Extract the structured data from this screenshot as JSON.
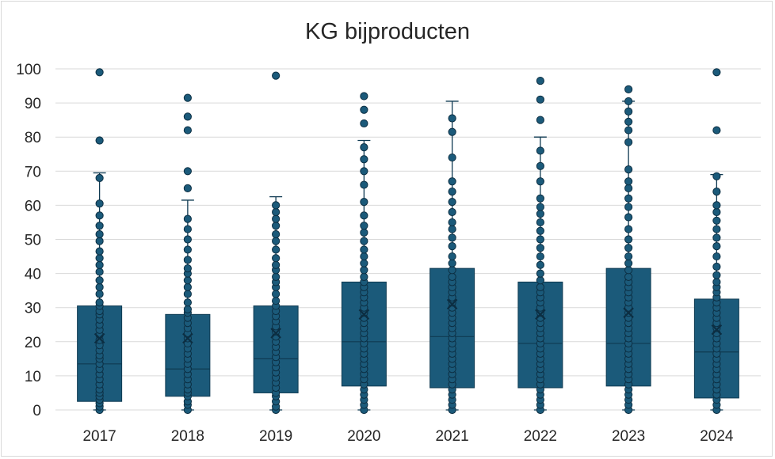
{
  "chart_data": {
    "type": "boxplot",
    "title": "KG bijproducten",
    "xlabel": "",
    "ylabel": "",
    "ylim": [
      0,
      100
    ],
    "yticks": [
      0,
      10,
      20,
      30,
      40,
      50,
      60,
      70,
      80,
      90,
      100
    ],
    "grid": true,
    "legend": "none",
    "colors": {
      "box": "#1b5a7a",
      "box_edge": "#0f3a52",
      "point": "#1b5a7a",
      "point_edge": "#0c2e42",
      "grid": "#d9d9d9"
    },
    "categories": [
      "2017",
      "2018",
      "2019",
      "2020",
      "2021",
      "2022",
      "2023",
      "2024"
    ],
    "boxes": [
      {
        "category": "2017",
        "min": 0,
        "q1": 2.5,
        "median": 13.5,
        "q3": 30.5,
        "max": 69.5,
        "mean": 21,
        "points": [
          0,
          1,
          2,
          3,
          4,
          5,
          6,
          7.5,
          9,
          10.5,
          12,
          13.5,
          15,
          16,
          17.5,
          19,
          20.5,
          22,
          23.5,
          25,
          26.5,
          28,
          29,
          30.5,
          31.5,
          34,
          36,
          38,
          40.5,
          42.5,
          44.5,
          46.5,
          49.5,
          51.5,
          54,
          57,
          60.5,
          68,
          79,
          99
        ]
      },
      {
        "category": "2018",
        "min": 0,
        "q1": 4,
        "median": 12,
        "q3": 28,
        "max": 61.5,
        "mean": 21,
        "points": [
          0,
          1.5,
          2.5,
          4,
          5,
          6,
          7.5,
          9,
          10.5,
          12,
          13.5,
          15,
          16.5,
          18,
          19.5,
          21,
          22.5,
          24,
          25.5,
          27,
          28.5,
          29.5,
          31.5,
          34,
          36,
          38,
          40,
          41.5,
          44,
          47,
          50,
          53,
          56,
          65,
          70,
          82,
          86,
          91.5
        ]
      },
      {
        "category": "2019",
        "min": 0,
        "q1": 5,
        "median": 15,
        "q3": 30.5,
        "max": 62.5,
        "mean": 22.5,
        "points": [
          0,
          1,
          2.5,
          4,
          5,
          6.5,
          8,
          9.5,
          11,
          12.5,
          14,
          15.5,
          17,
          18.5,
          20,
          21.5,
          23,
          24.5,
          26,
          27.5,
          29,
          30.5,
          32,
          34,
          36,
          37.5,
          39,
          41,
          42.5,
          44.5,
          47,
          49.5,
          51.5,
          54,
          56,
          58,
          60,
          98
        ]
      },
      {
        "category": "2020",
        "min": 0,
        "q1": 7,
        "median": 20,
        "q3": 37.5,
        "max": 79,
        "mean": 28,
        "points": [
          0,
          1.5,
          3,
          4.5,
          6,
          7.5,
          9,
          10.5,
          12,
          13.5,
          15,
          16.5,
          18,
          19.5,
          21,
          22.5,
          24,
          25.5,
          27,
          28.5,
          30,
          31.5,
          33,
          34.5,
          36,
          37.5,
          39,
          41,
          43,
          45,
          47,
          49.5,
          52,
          54,
          57,
          61,
          66,
          70,
          73.5,
          77,
          84,
          88,
          92
        ]
      },
      {
        "category": "2021",
        "min": 0,
        "q1": 6.5,
        "median": 21.5,
        "q3": 41.5,
        "max": 90.5,
        "mean": 31,
        "points": [
          0,
          1.5,
          3,
          4.5,
          6,
          7.5,
          9,
          10.5,
          12,
          13.5,
          15,
          16.5,
          18,
          19.5,
          21,
          22.5,
          24,
          25.5,
          27,
          28.5,
          30,
          31.5,
          33,
          34.5,
          36,
          37.5,
          39,
          41,
          43,
          45,
          48,
          50.5,
          53,
          55,
          58,
          61,
          64,
          67,
          74,
          81.5,
          85.5
        ]
      },
      {
        "category": "2022",
        "min": 0,
        "q1": 6.5,
        "median": 19.5,
        "q3": 37.5,
        "max": 80,
        "mean": 28,
        "points": [
          0,
          1.5,
          3,
          4.5,
          6,
          7.5,
          9,
          10.5,
          12,
          13.5,
          15,
          16.5,
          18,
          19.5,
          21,
          22.5,
          24,
          25.5,
          27,
          28.5,
          30,
          31.5,
          33,
          34.5,
          36,
          38,
          40,
          42.5,
          45,
          47.5,
          50,
          52.5,
          55,
          57.5,
          59.5,
          62,
          67,
          71.5,
          76,
          85,
          91,
          96.5
        ]
      },
      {
        "category": "2023",
        "min": 0,
        "q1": 7,
        "median": 19.5,
        "q3": 41.5,
        "max": 90.5,
        "mean": 28.5,
        "points": [
          0,
          1.5,
          3,
          4.5,
          6,
          7.5,
          9,
          10.5,
          12,
          13.5,
          15,
          16.5,
          18,
          19.5,
          21,
          22.5,
          24,
          25.5,
          27,
          28.5,
          30,
          31.5,
          33,
          34.5,
          36,
          37.5,
          39,
          41,
          43,
          45,
          47.5,
          50,
          53,
          56.5,
          59.5,
          62,
          65,
          67,
          70.5,
          78.5,
          82,
          84.5,
          87.5,
          90.5,
          94
        ]
      },
      {
        "category": "2024",
        "min": 0,
        "q1": 3.5,
        "median": 17,
        "q3": 32.5,
        "max": 69,
        "mean": 23.5,
        "points": [
          0,
          1.5,
          3,
          4.5,
          6,
          7.5,
          9,
          10.5,
          12,
          13.5,
          15,
          16.5,
          18,
          19.5,
          21,
          22.5,
          24,
          25.5,
          27,
          28.5,
          30,
          31.5,
          33,
          34.5,
          36,
          37.5,
          39.5,
          42,
          45,
          48,
          50.5,
          53,
          55.5,
          58,
          60,
          64,
          68.5,
          82,
          99
        ]
      }
    ]
  }
}
